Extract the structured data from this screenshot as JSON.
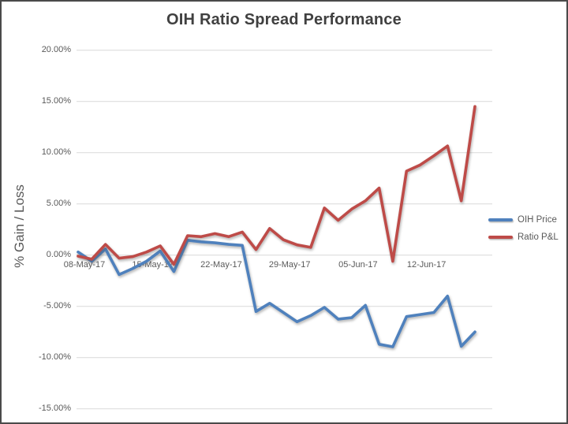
{
  "title": "OIH Ratio Spread Performance",
  "y_axis": {
    "title": "% Gain / Loss",
    "ticks": [
      {
        "value": 20,
        "label": "20.00%"
      },
      {
        "value": 15,
        "label": "15.00%"
      },
      {
        "value": 10,
        "label": "10.00%"
      },
      {
        "value": 5,
        "label": "5.00%"
      },
      {
        "value": 0,
        "label": "0.00%"
      },
      {
        "value": -5,
        "label": "-5.00%"
      },
      {
        "value": -10,
        "label": "-10.00%"
      },
      {
        "value": -15,
        "label": "-15.00%"
      }
    ]
  },
  "x_axis": {
    "labels": [
      {
        "index": 0,
        "label": "08-May-17"
      },
      {
        "index": 5,
        "label": "15-May-17"
      },
      {
        "index": 10,
        "label": "22-May-17"
      },
      {
        "index": 15,
        "label": "29-May-17"
      },
      {
        "index": 20,
        "label": "05-Jun-17"
      },
      {
        "index": 25,
        "label": "12-Jun-17"
      }
    ]
  },
  "legend": {
    "position": "right",
    "items": [
      {
        "label": "OIH Price",
        "color": "#4F81BD"
      },
      {
        "label": "Ratio P&L",
        "color": "#BE4B48"
      }
    ]
  },
  "chart_data": {
    "type": "line",
    "title": "OIH Ratio Spread Performance",
    "xlabel": "",
    "ylabel": "% Gain / Loss",
    "ylim": [
      -15,
      20
    ],
    "y_tick_step": 5,
    "grid": "horizontal",
    "legend_position": "right",
    "categories": [
      "08-May-17",
      "09-May-17",
      "10-May-17",
      "11-May-17",
      "12-May-17",
      "15-May-17",
      "16-May-17",
      "17-May-17",
      "18-May-17",
      "19-May-17",
      "22-May-17",
      "23-May-17",
      "24-May-17",
      "25-May-17",
      "26-May-17",
      "29-May-17",
      "30-May-17",
      "31-May-17",
      "01-Jun-17",
      "02-Jun-17",
      "05-Jun-17",
      "06-Jun-17",
      "07-Jun-17",
      "08-Jun-17",
      "09-Jun-17",
      "12-Jun-17",
      "13-Jun-17",
      "14-Jun-17",
      "15-Jun-17",
      "16-Jun-17"
    ],
    "series": [
      {
        "name": "OIH Price",
        "color": "#4F81BD",
        "unit": "%",
        "values": [
          0.3,
          -0.6,
          0.6,
          -1.9,
          -1.3,
          -0.6,
          0.4,
          -1.6,
          1.45,
          1.3,
          1.2,
          1.05,
          0.95,
          -5.5,
          -4.7,
          -5.6,
          -6.5,
          -5.9,
          -5.1,
          -6.25,
          -6.1,
          -4.9,
          -8.7,
          -8.95,
          -6.0,
          -5.8,
          -5.6,
          -4.0,
          -8.9,
          -7.5
        ]
      },
      {
        "name": "Ratio P&L",
        "color": "#BE4B48",
        "unit": "%",
        "values": [
          -0.1,
          -0.4,
          1.05,
          -0.3,
          -0.15,
          0.3,
          0.9,
          -0.9,
          1.9,
          1.8,
          2.1,
          1.8,
          2.25,
          0.55,
          2.6,
          1.5,
          1.0,
          0.75,
          4.6,
          3.4,
          4.5,
          5.3,
          6.55,
          -0.6,
          8.2,
          8.8,
          9.7,
          10.65,
          5.3,
          14.5
        ]
      }
    ]
  }
}
